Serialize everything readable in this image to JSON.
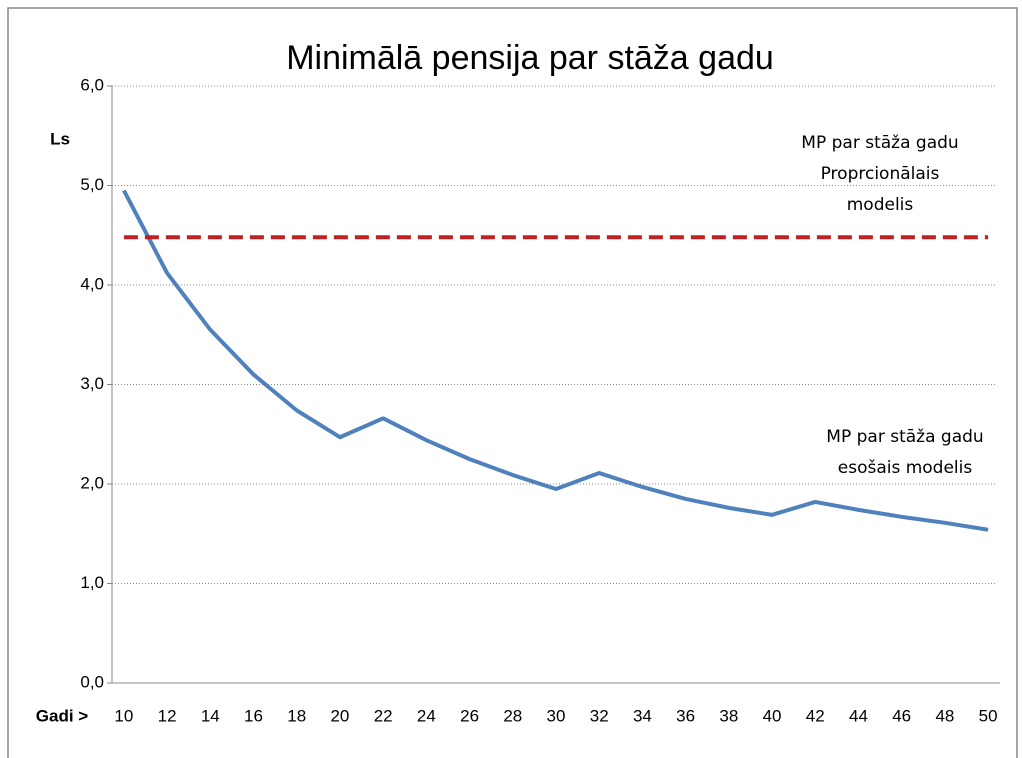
{
  "chart_data": {
    "type": "line",
    "title": "Minimālā pensija par stāža gadu",
    "y_label": "Ls",
    "x_label": "Gadi >",
    "x": [
      10,
      12,
      14,
      16,
      18,
      20,
      22,
      24,
      26,
      28,
      30,
      32,
      34,
      36,
      38,
      40,
      42,
      44,
      46,
      48,
      50
    ],
    "series": [
      {
        "color": "#4f81bd",
        "dash": false,
        "values": [
          4.95,
          4.12,
          3.55,
          3.1,
          2.74,
          2.47,
          2.66,
          2.44,
          2.25,
          2.09,
          1.95,
          2.11,
          1.97,
          1.85,
          1.76,
          1.69,
          1.82,
          1.74,
          1.67,
          1.61,
          1.54
        ]
      },
      {
        "color": "#c0201f",
        "dash": true,
        "values": [
          4.48,
          4.48,
          4.48,
          4.48,
          4.48,
          4.48,
          4.48,
          4.48,
          4.48,
          4.48,
          4.48,
          4.48,
          4.48,
          4.48,
          4.48,
          4.48,
          4.48,
          4.48,
          4.48,
          4.48,
          4.48
        ]
      }
    ],
    "annotations": [
      {
        "lines": [
          "MP par stāža gadu",
          "Proprcionālais",
          "modelis"
        ]
      },
      {
        "lines": [
          "MP par stāža gadu",
          "esošais modelis"
        ]
      }
    ],
    "xlim": [
      9.45,
      50.55
    ],
    "xticks": [
      10,
      12,
      14,
      16,
      18,
      20,
      22,
      24,
      26,
      28,
      30,
      32,
      34,
      36,
      38,
      40,
      42,
      44,
      46,
      48,
      50
    ],
    "ylim": [
      0,
      6
    ],
    "yticks": [
      {
        "value": 0,
        "label": "0,0"
      },
      {
        "value": 1,
        "label": "1,0"
      },
      {
        "value": 2,
        "label": "2,0"
      },
      {
        "value": 3,
        "label": "3,0"
      },
      {
        "value": 4,
        "label": "4,0"
      },
      {
        "value": 5,
        "label": "5,0"
      },
      {
        "value": 6,
        "label": "6,0"
      }
    ],
    "grid": true
  }
}
